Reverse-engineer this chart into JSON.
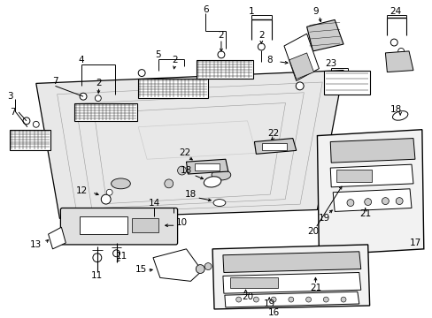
{
  "bg_color": "#ffffff",
  "fig_width": 4.89,
  "fig_height": 3.6,
  "dpi": 100,
  "line_color": "#000000",
  "gray_light": "#e8e8e8",
  "gray_mid": "#cccccc",
  "gray_dark": "#999999"
}
